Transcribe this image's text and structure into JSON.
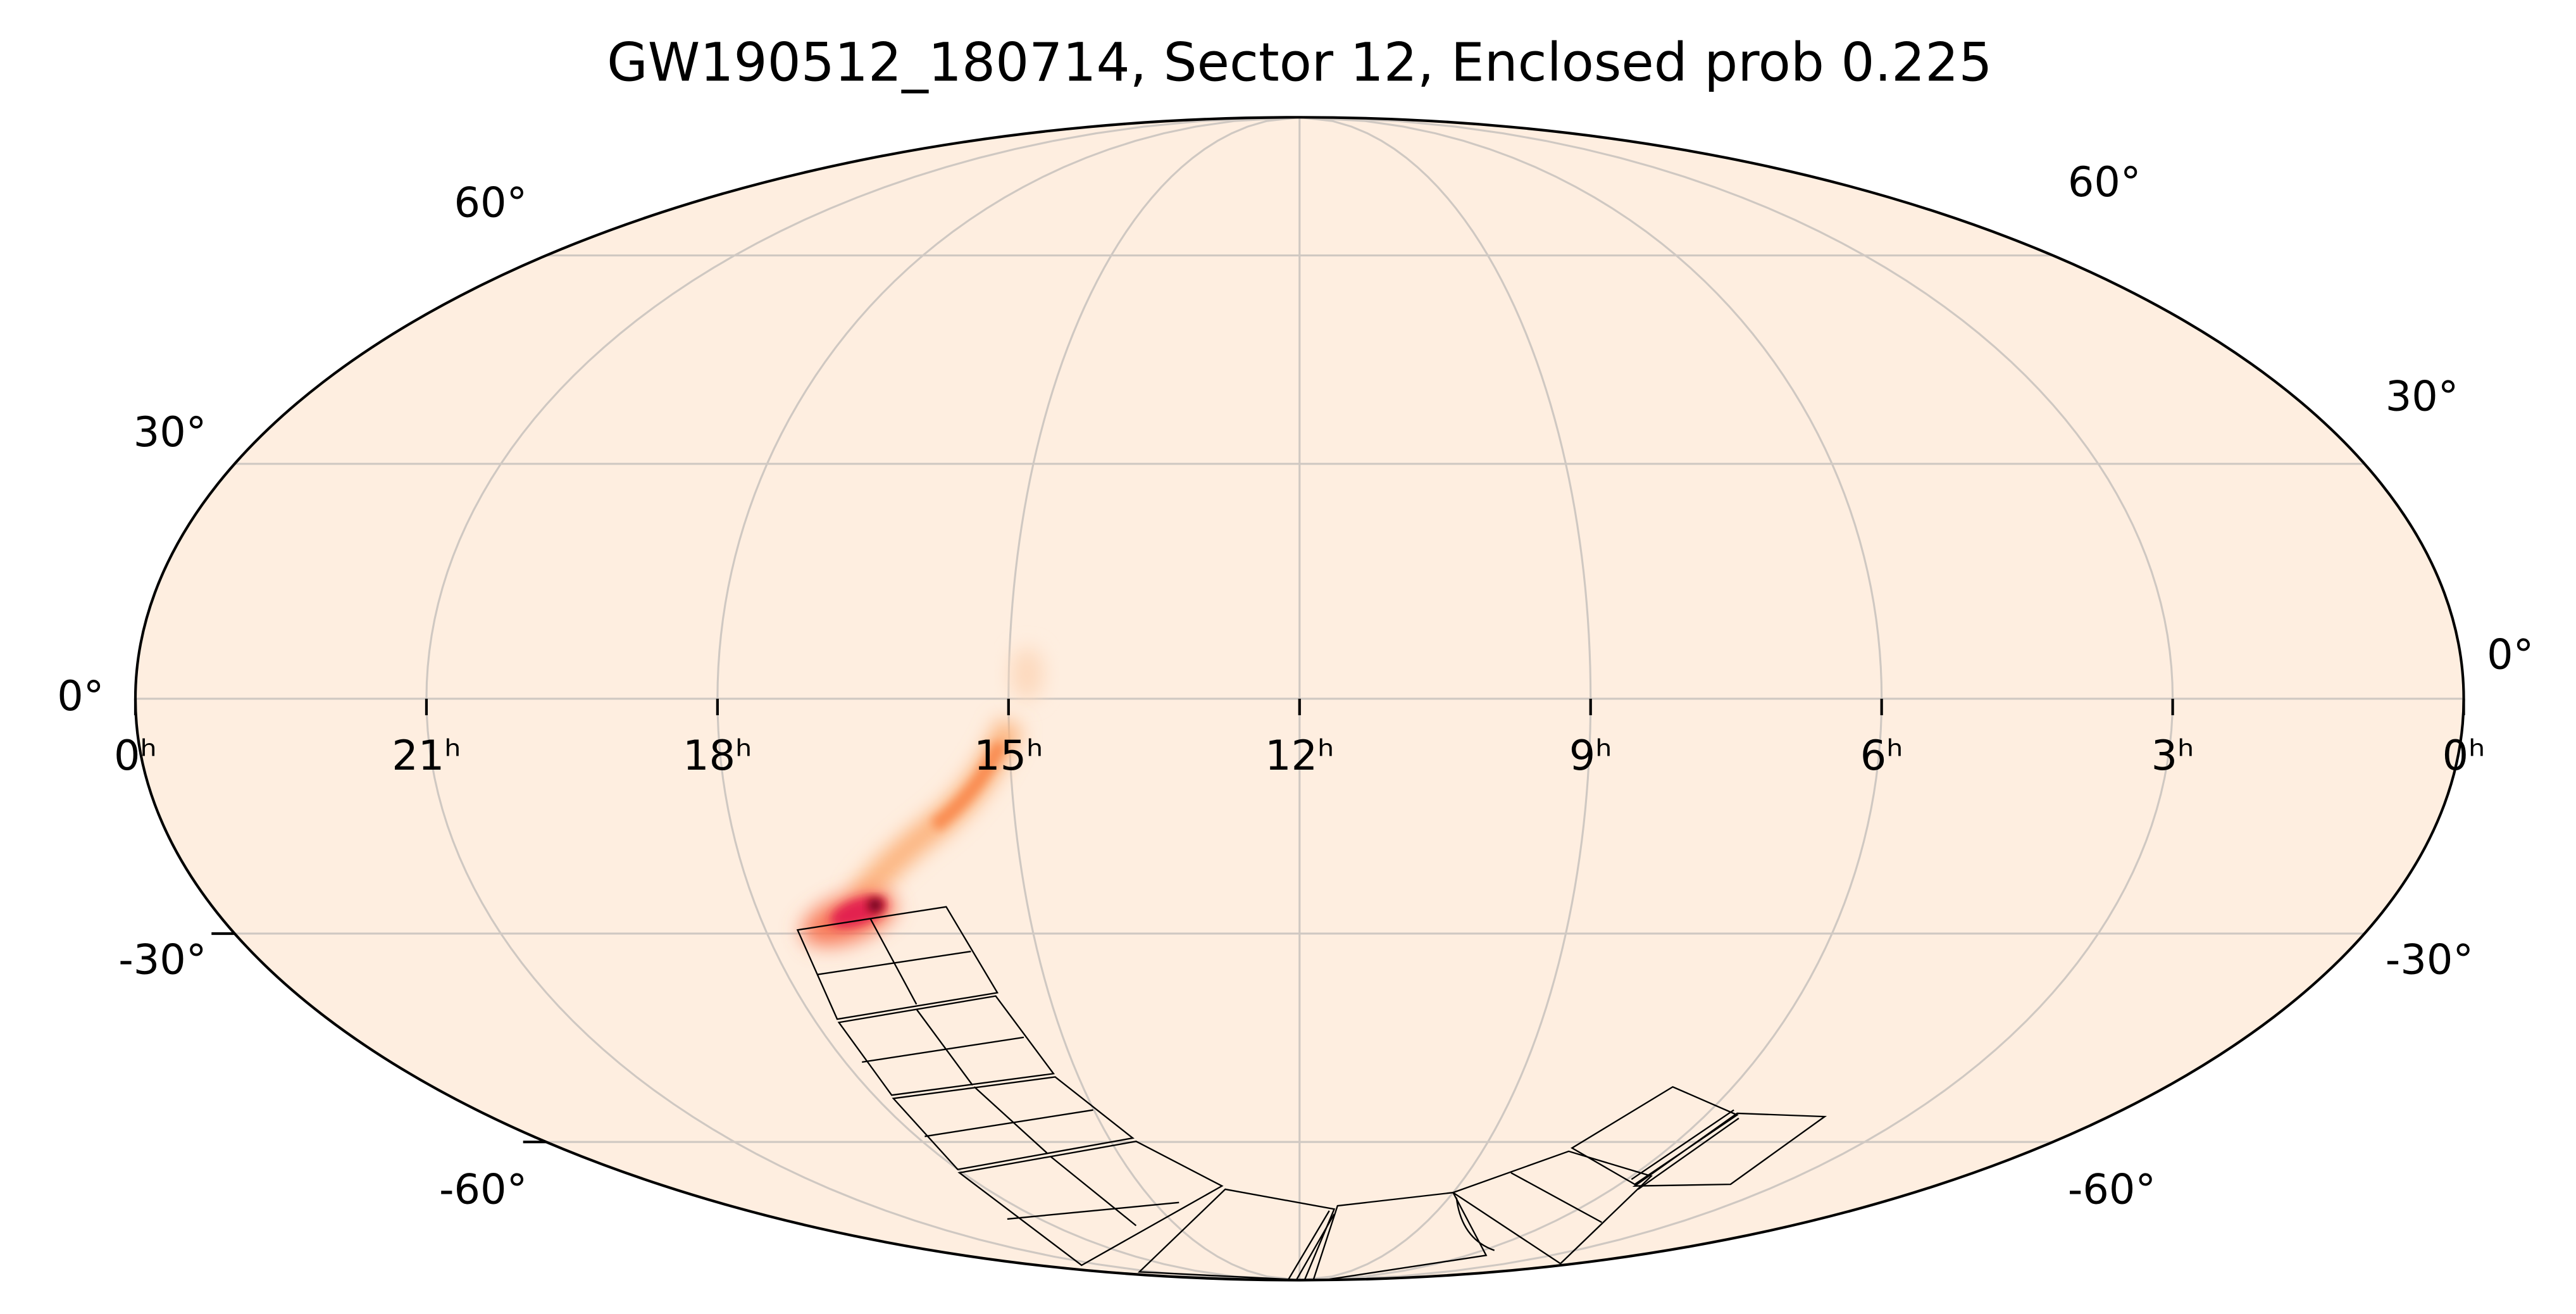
{
  "chart_data": {
    "type": "mollweide",
    "title": "GW190512_180714, Sector 12, Enclosed prob 0.225",
    "xticks": [
      {
        "value": 24,
        "label": "0ʰ"
      },
      {
        "value": 21,
        "label": "21ʰ"
      },
      {
        "value": 18,
        "label": "18ʰ"
      },
      {
        "value": 15,
        "label": "15ʰ"
      },
      {
        "value": 12,
        "label": "12ʰ"
      },
      {
        "value": 9,
        "label": "9ʰ"
      },
      {
        "value": 6,
        "label": "6ʰ"
      },
      {
        "value": 3,
        "label": "3ʰ"
      },
      {
        "value": 0,
        "label": "0ʰ"
      }
    ],
    "yticks": [
      {
        "value": 60,
        "label": "60°"
      },
      {
        "value": 30,
        "label": "30°"
      },
      {
        "value": 0,
        "label": "0°"
      },
      {
        "value": -30,
        "label": "-30°"
      },
      {
        "value": -60,
        "label": "-60°"
      }
    ],
    "grid": true
  }
}
